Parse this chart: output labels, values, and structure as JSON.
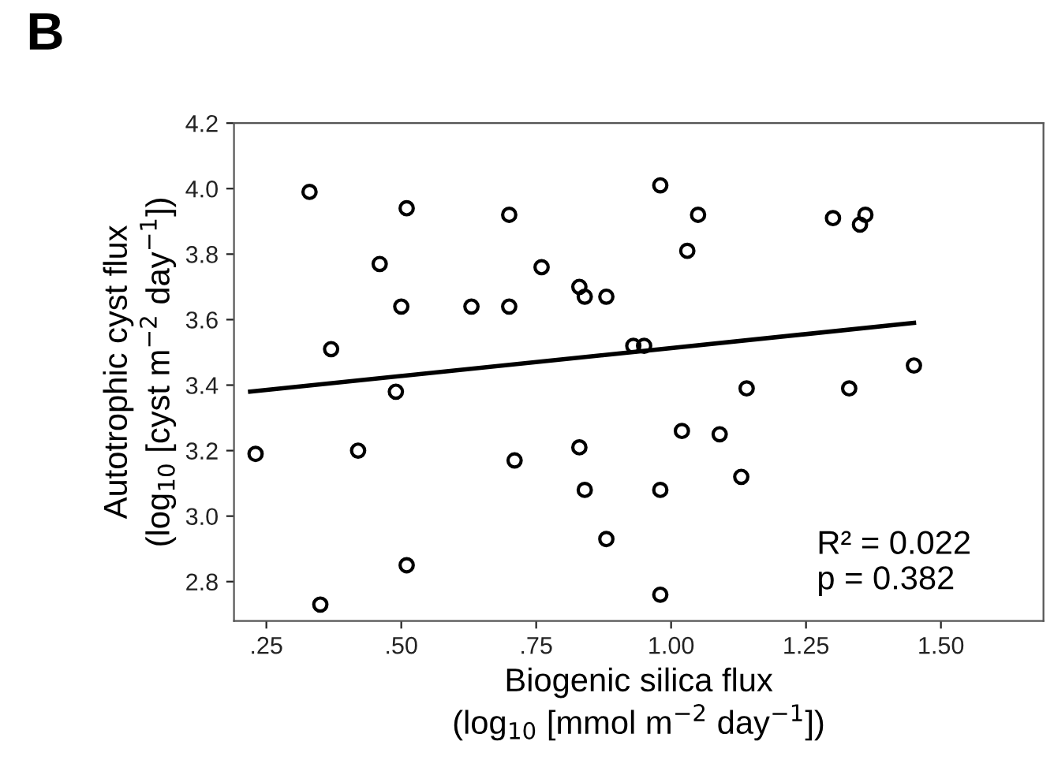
{
  "chart_data": {
    "type": "scatter",
    "xlabel": "Biogenic silica flux\n(log$_{10}$ [mmol m$^{−2}$ day$^{−1}$])",
    "ylabel": "Autotrophic cyst flux\n(log$_{10}$ [cyst m$^{−2}$ day$^{−1}$])",
    "annotations": [
      "B",
      "R² = 0.022\np = 0.382"
    ],
    "series": [
      {
        "color": "#000000",
        "marker": "circle",
        "x": [
          0.23,
          0.33,
          0.35,
          0.37,
          0.42,
          0.46,
          0.49,
          0.5,
          0.51,
          0.51,
          0.63,
          0.7,
          0.7,
          0.71,
          0.76,
          0.83,
          0.84,
          0.83,
          0.84,
          0.88,
          0.88,
          0.93,
          0.95,
          0.98,
          0.98,
          0.98,
          1.02,
          1.03,
          1.05,
          1.09,
          1.13,
          1.14,
          1.3,
          1.33,
          1.35,
          1.36,
          1.45
        ],
        "values": [
          3.19,
          3.99,
          2.73,
          3.51,
          3.2,
          3.77,
          3.38,
          3.64,
          3.94,
          2.85,
          3.64,
          3.92,
          3.64,
          3.17,
          3.76,
          3.7,
          3.67,
          3.21,
          3.08,
          3.67,
          2.93,
          3.52,
          3.52,
          4.01,
          3.08,
          2.76,
          3.26,
          3.81,
          3.92,
          3.25,
          3.12,
          3.39,
          3.91,
          3.39,
          3.89,
          3.92,
          3.46
        ]
      },
      {
        "type": "line",
        "color": "#000000",
        "marker": "none",
        "line_style": "solid",
        "x": [
          0.22,
          1.45
        ],
        "values": [
          3.38,
          3.59
        ]
      }
    ],
    "xlim": [
      0.19,
      1.69
    ],
    "ylim": [
      2.68,
      4.2
    ],
    "xticks": [
      {
        "value": 0.25,
        "label": ".25"
      },
      {
        "value": 0.5,
        "label": ".50"
      },
      {
        "value": 0.75,
        "label": ".75"
      },
      {
        "value": 1.0,
        "label": "1.00"
      },
      {
        "value": 1.25,
        "label": "1.25"
      },
      {
        "value": 1.5,
        "label": "1.50"
      }
    ],
    "yticks": [
      {
        "value": 2.8,
        "label": "2.8"
      },
      {
        "value": 3.0,
        "label": "3.0"
      },
      {
        "value": 3.2,
        "label": "3.2"
      },
      {
        "value": 3.4,
        "label": "3.4"
      },
      {
        "value": 3.6,
        "label": "3.6"
      },
      {
        "value": 3.8,
        "label": "3.8"
      },
      {
        "value": 4.0,
        "label": "4.0"
      },
      {
        "value": 4.2,
        "label": "4.2"
      }
    ],
    "grid": false,
    "legend": false
  }
}
